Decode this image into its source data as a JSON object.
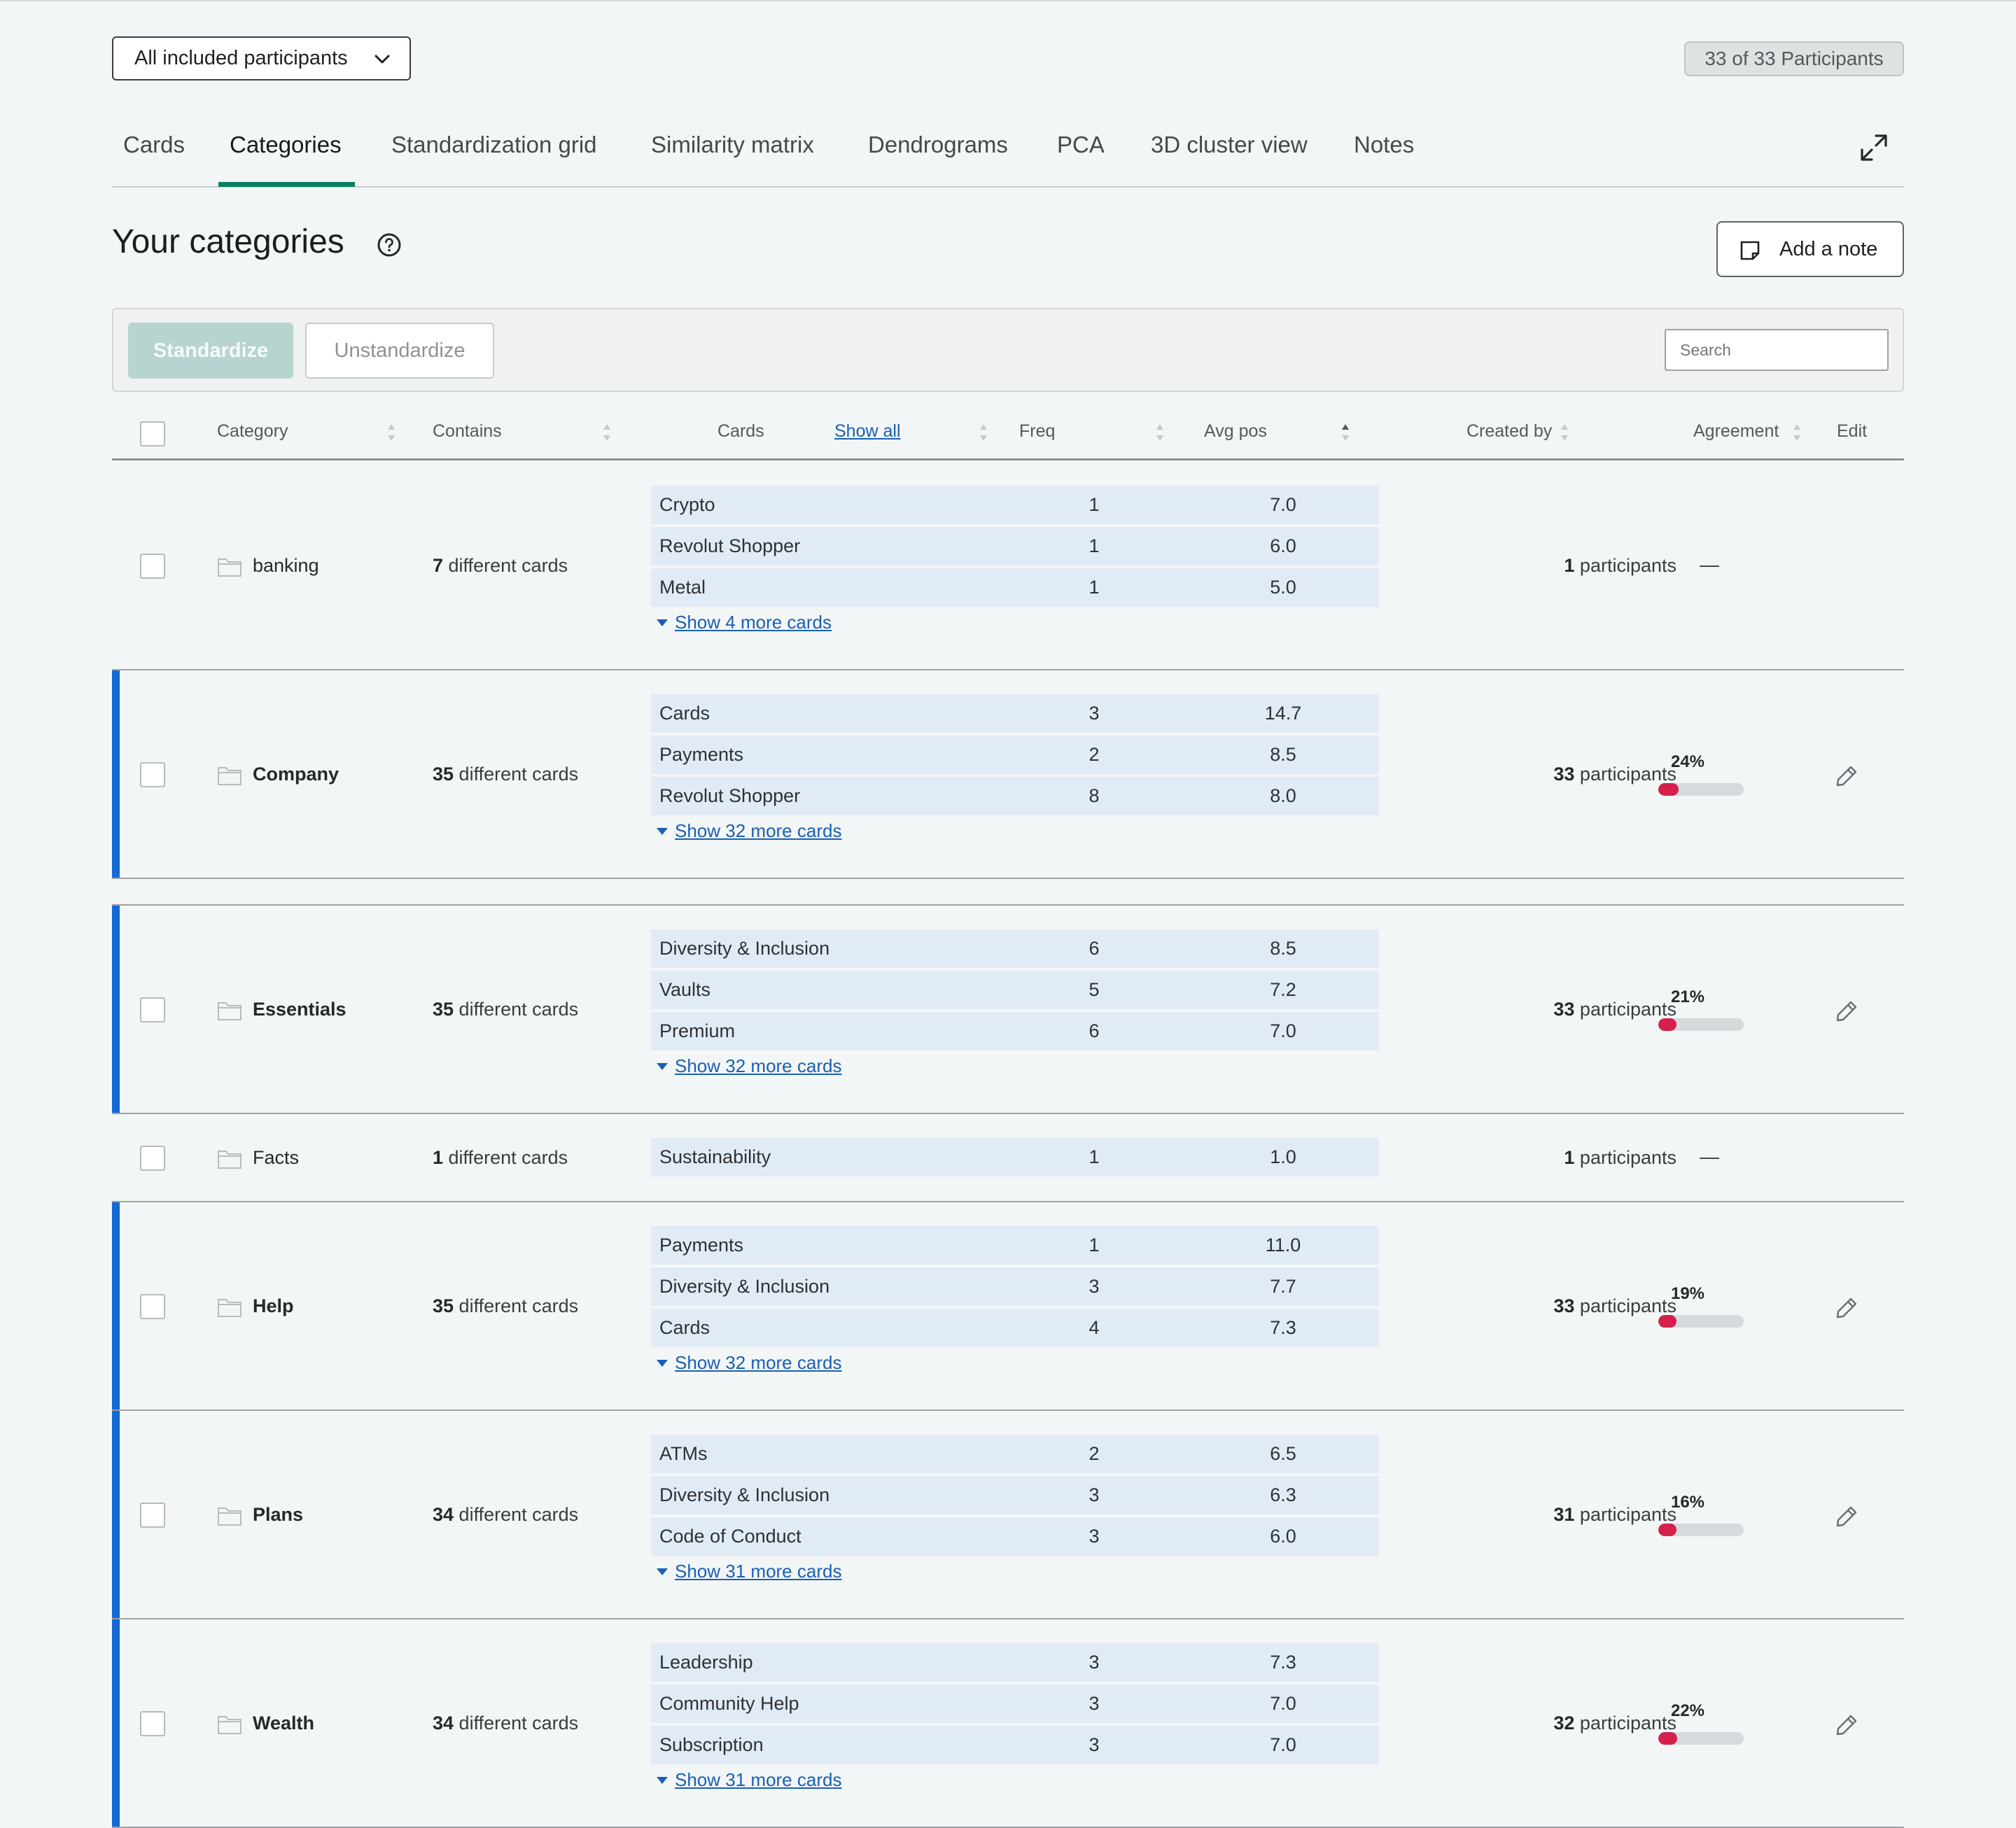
{
  "filter": {
    "label": "All included participants"
  },
  "participants_badge": "33 of 33 Participants",
  "tabs": [
    "Cards",
    "Categories",
    "Standardization grid",
    "Similarity matrix",
    "Dendrograms",
    "PCA",
    "3D cluster view",
    "Notes"
  ],
  "active_tab": "Categories",
  "heading": "Your categories",
  "add_note_label": "Add a note",
  "toolbar": {
    "standardize_label": "Standardize",
    "unstandardize_label": "Unstandardize",
    "search_placeholder": "Search"
  },
  "columns": {
    "category": "Category",
    "contains": "Contains",
    "cards": "Cards",
    "show_all": "Show all",
    "freq": "Freq",
    "avg_pos": "Avg pos",
    "created_by": "Created by",
    "agreement": "Agreement",
    "edit": "Edit"
  },
  "colors": {
    "accent": "#0a7e62",
    "link": "#1a5fb4",
    "agreement_fill": "#d6204c",
    "row_marker": "#1468d8"
  },
  "rows": [
    {
      "name": "banking",
      "standardized": false,
      "contains_num": "7",
      "contains_text": " different cards",
      "cards": [
        {
          "name": "Crypto",
          "freq": "1",
          "avg": "7.0"
        },
        {
          "name": "Revolut Shopper",
          "freq": "1",
          "avg": "6.0"
        },
        {
          "name": "Metal",
          "freq": "1",
          "avg": "5.0"
        }
      ],
      "more": "Show 4 more cards",
      "created_num": "1",
      "created_text": " participants",
      "agreement": null,
      "agreement_dash": "—"
    },
    {
      "name": "Company",
      "standardized": true,
      "contains_num": "35",
      "contains_text": " different cards",
      "cards": [
        {
          "name": "Cards",
          "freq": "3",
          "avg": "14.7"
        },
        {
          "name": "Payments",
          "freq": "2",
          "avg": "8.5"
        },
        {
          "name": "Revolut Shopper",
          "freq": "8",
          "avg": "8.0"
        }
      ],
      "more": "Show 32 more cards",
      "created_num": "33",
      "created_text": " participants",
      "agreement": "24%",
      "agreement_value": 0.24
    },
    {
      "name": "Essentials",
      "standardized": true,
      "contains_num": "35",
      "contains_text": " different cards",
      "cards": [
        {
          "name": "Diversity & Inclusion",
          "freq": "6",
          "avg": "8.5"
        },
        {
          "name": "Vaults",
          "freq": "5",
          "avg": "7.2"
        },
        {
          "name": "Premium",
          "freq": "6",
          "avg": "7.0"
        }
      ],
      "more": "Show 32 more cards",
      "created_num": "33",
      "created_text": " participants",
      "agreement": "21%",
      "agreement_value": 0.21
    },
    {
      "name": "Facts",
      "standardized": false,
      "contains_num": "1",
      "contains_text": " different cards",
      "cards": [
        {
          "name": "Sustainability",
          "freq": "1",
          "avg": "1.0"
        }
      ],
      "more": "",
      "created_num": "1",
      "created_text": " participants",
      "agreement": null,
      "agreement_dash": "—"
    },
    {
      "name": "Help",
      "standardized": true,
      "contains_num": "35",
      "contains_text": " different cards",
      "cards": [
        {
          "name": "Payments",
          "freq": "1",
          "avg": "11.0"
        },
        {
          "name": "Diversity & Inclusion",
          "freq": "3",
          "avg": "7.7"
        },
        {
          "name": "Cards",
          "freq": "4",
          "avg": "7.3"
        }
      ],
      "more": "Show 32 more cards",
      "created_num": "33",
      "created_text": " participants",
      "agreement": "19%",
      "agreement_value": 0.19
    },
    {
      "name": "Plans",
      "standardized": true,
      "contains_num": "34",
      "contains_text": " different cards",
      "cards": [
        {
          "name": "ATMs",
          "freq": "2",
          "avg": "6.5"
        },
        {
          "name": "Diversity & Inclusion",
          "freq": "3",
          "avg": "6.3"
        },
        {
          "name": "Code of Conduct",
          "freq": "3",
          "avg": "6.0"
        }
      ],
      "more": "Show 31 more cards",
      "created_num": "31",
      "created_text": " participants",
      "agreement": "16%",
      "agreement_value": 0.16
    },
    {
      "name": "Wealth",
      "standardized": true,
      "contains_num": "34",
      "contains_text": " different cards",
      "cards": [
        {
          "name": "Leadership",
          "freq": "3",
          "avg": "7.3"
        },
        {
          "name": "Community Help",
          "freq": "3",
          "avg": "7.0"
        },
        {
          "name": "Subscription",
          "freq": "3",
          "avg": "7.0"
        }
      ],
      "more": "Show 31 more cards",
      "created_num": "32",
      "created_text": " participants",
      "agreement": "22%",
      "agreement_value": 0.22
    }
  ]
}
